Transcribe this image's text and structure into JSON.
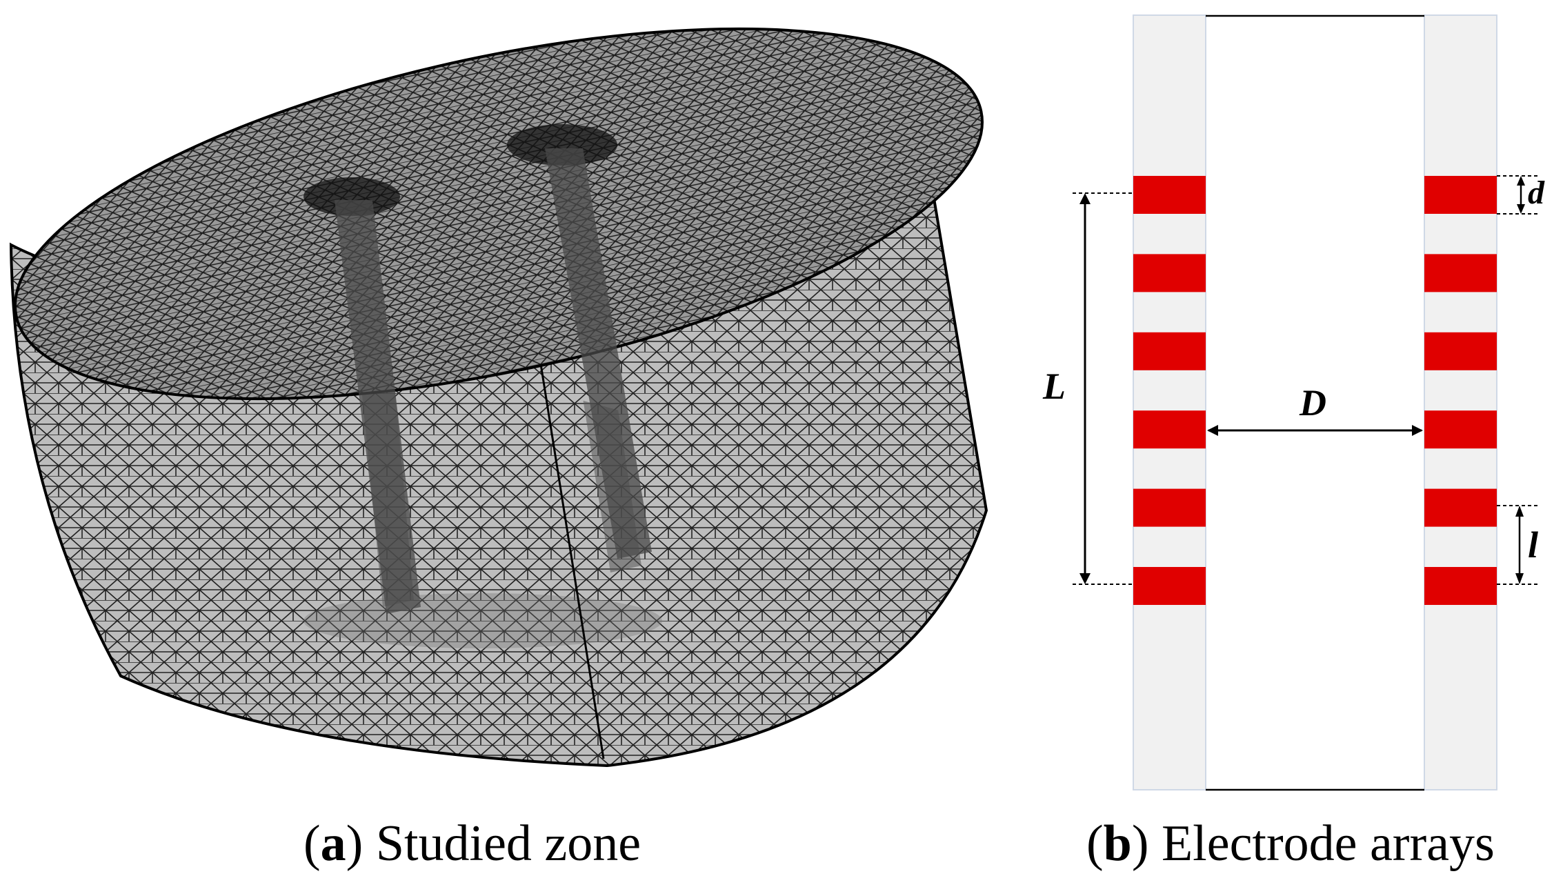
{
  "panel_a": {
    "label": "a",
    "title": "Studied zone"
  },
  "panel_b": {
    "label": "b",
    "title": "Electrode arrays",
    "dimensions": {
      "spacing_label": "L",
      "distance_label": "D",
      "electrode_width_label": "d",
      "interval_label": "l"
    },
    "electrodes_per_borehole": 6
  },
  "colors": {
    "electrode": "#e00000",
    "borehole": "#f1f1f1",
    "mesh_line": "#111111"
  }
}
